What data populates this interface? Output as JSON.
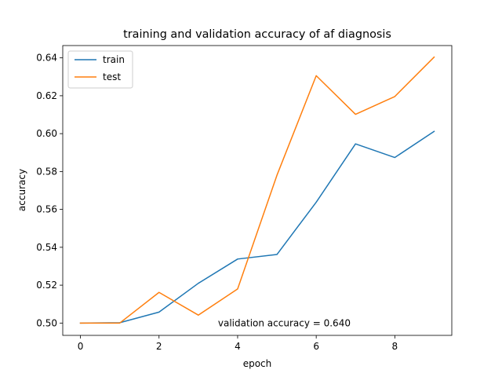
{
  "chart_data": {
    "type": "line",
    "title": "training and validation accuracy of af diagnosis",
    "xlabel": "epoch",
    "ylabel": "accuracy",
    "x": [
      0,
      1,
      2,
      3,
      4,
      5,
      6,
      7,
      8,
      9
    ],
    "xlim": [
      -0.45,
      9.45
    ],
    "ylim": [
      0.4935,
      0.6465
    ],
    "xticks": [
      0,
      2,
      4,
      6,
      8
    ],
    "yticks": [
      0.5,
      0.52,
      0.54,
      0.56,
      0.58,
      0.6,
      0.62,
      0.64
    ],
    "xtick_labels": [
      "0",
      "2",
      "4",
      "6",
      "8"
    ],
    "ytick_labels": [
      "0.50",
      "0.52",
      "0.54",
      "0.56",
      "0.58",
      "0.60",
      "0.62",
      "0.64"
    ],
    "grid": false,
    "legend_position": "top-left",
    "series": [
      {
        "name": "train",
        "color": "#1f77b4",
        "values": [
          0.5,
          0.5002,
          0.5058,
          0.521,
          0.5338,
          0.5362,
          0.5638,
          0.5946,
          0.5874,
          0.6012
        ]
      },
      {
        "name": "test",
        "color": "#ff7f0e",
        "values": [
          0.5,
          0.5,
          0.5162,
          0.5042,
          0.518,
          0.578,
          0.6306,
          0.6102,
          0.6196,
          0.6404
        ]
      }
    ],
    "annotations": [
      {
        "text": "validation accuracy = 0.640",
        "x": 3.5,
        "y": 0.5
      }
    ]
  }
}
